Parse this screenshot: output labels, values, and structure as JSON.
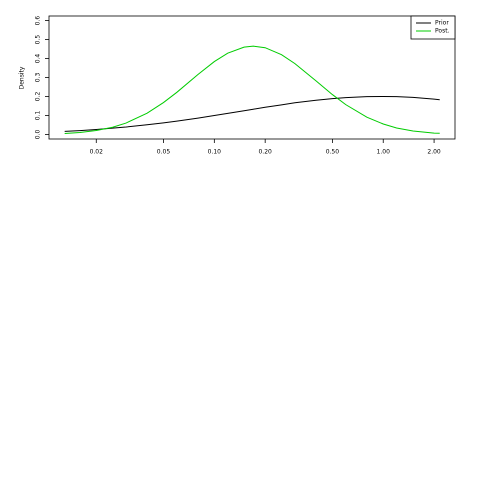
{
  "chart_data": {
    "type": "line",
    "y_label": "Density",
    "xlog": true,
    "legend": "top-right",
    "x": [
      0.013,
      0.016,
      0.02,
      0.025,
      0.03,
      0.04,
      0.05,
      0.06,
      0.08,
      0.1,
      0.12,
      0.15,
      0.17,
      0.2,
      0.25,
      0.3,
      0.4,
      0.5,
      0.6,
      0.8,
      1.0,
      1.2,
      1.5,
      2.0,
      2.16
    ],
    "series": [
      {
        "name": "Prior",
        "color": "#000000",
        "values": [
          0.016,
          0.02,
          0.026,
          0.033,
          0.039,
          0.051,
          0.061,
          0.07,
          0.086,
          0.1,
          0.111,
          0.125,
          0.133,
          0.143,
          0.156,
          0.167,
          0.18,
          0.189,
          0.194,
          0.199,
          0.2,
          0.199,
          0.195,
          0.186,
          0.183
        ]
      },
      {
        "name": "Post.",
        "color": "#00cc00",
        "values": [
          0.005,
          0.01,
          0.021,
          0.038,
          0.06,
          0.112,
          0.168,
          0.222,
          0.316,
          0.384,
          0.428,
          0.46,
          0.465,
          0.457,
          0.42,
          0.373,
          0.282,
          0.21,
          0.157,
          0.091,
          0.055,
          0.034,
          0.018,
          0.007,
          0.006
        ]
      }
    ],
    "xlim": [
      0.0105,
      2.66
    ],
    "xticks": [
      0.02,
      0.05,
      {
        "value": 0.1,
        "label": "0.10"
      },
      {
        "value": 0.2,
        "label": "0.20"
      },
      {
        "value": 0.5,
        "label": "0.50"
      },
      {
        "value": 1,
        "label": "1.00"
      },
      {
        "value": 2,
        "label": "2.00"
      }
    ],
    "ylim": [
      -0.024,
      0.624
    ],
    "yticks": [
      {
        "value": 0,
        "label": "0.0"
      },
      0.1,
      0.2,
      0.3,
      0.4,
      0.5,
      0.6
    ]
  }
}
